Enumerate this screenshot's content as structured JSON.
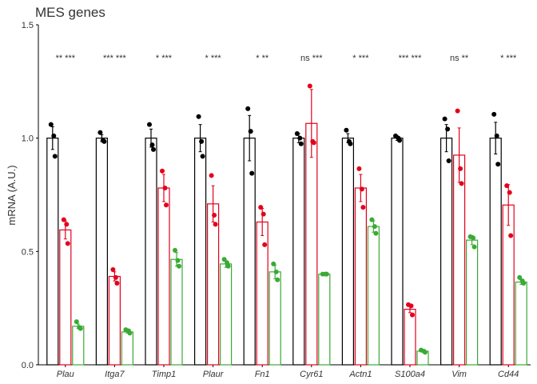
{
  "chart_data": {
    "type": "bar",
    "title": "MES genes",
    "y_label": "mRNA (A.U.)",
    "categories": [
      "Plau",
      "Itga7",
      "Timp1",
      "Plaur",
      "Fn1",
      "Cyr61",
      "Actn1",
      "S100a4",
      "Vim",
      "Cd44"
    ],
    "annotations": [
      "** ***",
      "*** ***",
      "* ***",
      "* ***",
      "* **",
      "ns ***",
      "* ***",
      "*** ***",
      "ns **",
      "* ***"
    ],
    "series": [
      {
        "color": "#000000",
        "values": [
          1.0,
          1.0,
          1.0,
          1.0,
          1.0,
          1.0,
          1.0,
          1.0,
          1.0,
          1.0
        ],
        "errors": [
          0.05,
          0.015,
          0.04,
          0.06,
          0.1,
          0.02,
          0.02,
          0.01,
          0.06,
          0.07
        ],
        "points": [
          [
            1.06,
            1.01,
            0.92
          ],
          [
            1.025,
            0.99,
            0.985
          ],
          [
            1.06,
            0.97,
            0.95
          ],
          [
            1.095,
            0.985,
            0.92
          ],
          [
            1.13,
            1.03,
            0.845
          ],
          [
            1.02,
            1.0,
            0.975
          ],
          [
            1.035,
            0.985,
            0.975
          ],
          [
            1.01,
            1.0,
            0.99
          ],
          [
            1.085,
            1.04,
            0.9
          ],
          [
            1.105,
            1.01,
            0.885
          ]
        ]
      },
      {
        "color": "#e3001b",
        "values": [
          0.595,
          0.39,
          0.78,
          0.71,
          0.63,
          1.065,
          0.78,
          0.245,
          0.925,
          0.705
        ],
        "errors": [
          0.04,
          0.02,
          0.06,
          0.08,
          0.06,
          0.15,
          0.06,
          0.015,
          0.12,
          0.09
        ],
        "points": [
          [
            0.64,
            0.62,
            0.535
          ],
          [
            0.42,
            0.385,
            0.36
          ],
          [
            0.855,
            0.78,
            0.705
          ],
          [
            0.835,
            0.66,
            0.62
          ],
          [
            0.695,
            0.665,
            0.53
          ],
          [
            1.23,
            0.985,
            0.98
          ],
          [
            0.865,
            0.775,
            0.695
          ],
          [
            0.265,
            0.26,
            0.22
          ],
          [
            1.12,
            0.865,
            0.8
          ],
          [
            0.79,
            0.76,
            0.57
          ]
        ]
      },
      {
        "color": "#3aaa35",
        "values": [
          0.17,
          0.145,
          0.465,
          0.445,
          0.41,
          0.4,
          0.61,
          0.06,
          0.55,
          0.365
        ],
        "errors": [
          0.01,
          0.005,
          0.03,
          0.015,
          0.03,
          0.003,
          0.025,
          0.004,
          0.02,
          0.01
        ],
        "points": [
          [
            0.19,
            0.165,
            0.16
          ],
          [
            0.155,
            0.15,
            0.14
          ],
          [
            0.505,
            0.46,
            0.435
          ],
          [
            0.465,
            0.45,
            0.435
          ],
          [
            0.445,
            0.41,
            0.375
          ],
          [
            0.4,
            0.4,
            0.4
          ],
          [
            0.64,
            0.61,
            0.58
          ],
          [
            0.065,
            0.06,
            0.055
          ],
          [
            0.565,
            0.56,
            0.52
          ],
          [
            0.385,
            0.37,
            0.36
          ]
        ]
      }
    ],
    "ylim": [
      0,
      1.5
    ],
    "yticks": [
      {
        "value": 0,
        "label": "0.0"
      },
      0.5,
      {
        "value": 1,
        "label": "1.0"
      },
      1.5
    ]
  }
}
